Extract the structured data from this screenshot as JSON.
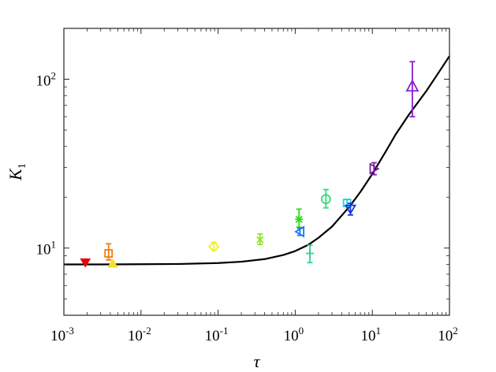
{
  "chart_data": {
    "type": "scatter",
    "xlabel": "τ",
    "ylabel": {
      "base": "K",
      "subscript": "1"
    },
    "xscale": "log",
    "yscale": "log",
    "xlim": [
      0.001,
      100
    ],
    "ylim": [
      4,
      200
    ],
    "grid": false,
    "legend": "none",
    "x_ticks": [
      {
        "value": 0.001,
        "base": "10",
        "exp": "-3"
      },
      {
        "value": 0.01,
        "base": "10",
        "exp": "-2"
      },
      {
        "value": 0.1,
        "base": "10",
        "exp": "-1"
      },
      {
        "value": 1,
        "base": "10",
        "exp": "0"
      },
      {
        "value": 10,
        "base": "10",
        "exp": "1"
      },
      {
        "value": 100,
        "base": "10",
        "exp": "2"
      }
    ],
    "y_ticks": [
      {
        "value": 10,
        "base": "10",
        "exp": "1"
      },
      {
        "value": 100,
        "base": "10",
        "exp": "2"
      }
    ],
    "points": [
      {
        "x": 0.0019,
        "y": 8.2,
        "marker": "triangle-down-filled",
        "color": "#e8000b"
      },
      {
        "x": 0.0038,
        "y": 9.3,
        "err_low": 8.5,
        "err_high": 10.6,
        "marker": "square",
        "color": "#f07c14"
      },
      {
        "x": 0.0043,
        "y": 8.1,
        "marker": "triangle-up-filled",
        "color": "#f6e02a"
      },
      {
        "x": 0.088,
        "y": 10.2,
        "err_low": 9.7,
        "err_high": 10.8,
        "marker": "diamond",
        "color": "#f0f023"
      },
      {
        "x": 0.35,
        "y": 11.2,
        "err_low": 10.5,
        "err_high": 12.1,
        "marker": "x",
        "color": "#8ce627"
      },
      {
        "x": 1.12,
        "y": 14.8,
        "err_low": 13.3,
        "err_high": 17.0,
        "marker": "asterisk",
        "color": "#2edb1b"
      },
      {
        "x": 1.15,
        "y": 12.5,
        "err_low": 11.9,
        "err_high": 13.1,
        "marker": "triangle-left",
        "color": "#1776ef"
      },
      {
        "x": 1.55,
        "y": 9.3,
        "err_low": 8.2,
        "err_high": 10.4,
        "marker": "plus",
        "color": "#28d68a"
      },
      {
        "x": 2.5,
        "y": 19.5,
        "err_low": 17.3,
        "err_high": 22.2,
        "marker": "circle",
        "color": "#30dc74"
      },
      {
        "x": 4.7,
        "y": 18.5,
        "err_low": 17.8,
        "err_high": 19.4,
        "marker": "square",
        "color": "#1fd6da"
      },
      {
        "x": 5.2,
        "y": 17.0,
        "err_low": 15.7,
        "err_high": 18.4,
        "marker": "triangle-down",
        "color": "#1733dc"
      },
      {
        "x": 10.5,
        "y": 29.5,
        "err_low": 27.2,
        "err_high": 32.0,
        "marker": "triangle-right",
        "color": "#7b1fa6"
      },
      {
        "x": 33,
        "y": 91,
        "err_low": 60,
        "err_high": 127,
        "marker": "triangle-up",
        "color": "#8c1fd2"
      }
    ],
    "curve": {
      "color": "#000000",
      "x": [
        0.001,
        0.00316,
        0.01,
        0.0316,
        0.1,
        0.2,
        0.4,
        0.7,
        1,
        1.5,
        2,
        3,
        5,
        7,
        10,
        15,
        20,
        30,
        50,
        70,
        100
      ],
      "y": [
        8.0,
        8.0,
        8.02,
        8.05,
        8.15,
        8.3,
        8.6,
        9.1,
        9.6,
        10.5,
        11.5,
        13.4,
        17.5,
        21.5,
        27.5,
        37.5,
        47.0,
        62.0,
        85.0,
        107.0,
        137.0
      ]
    }
  }
}
